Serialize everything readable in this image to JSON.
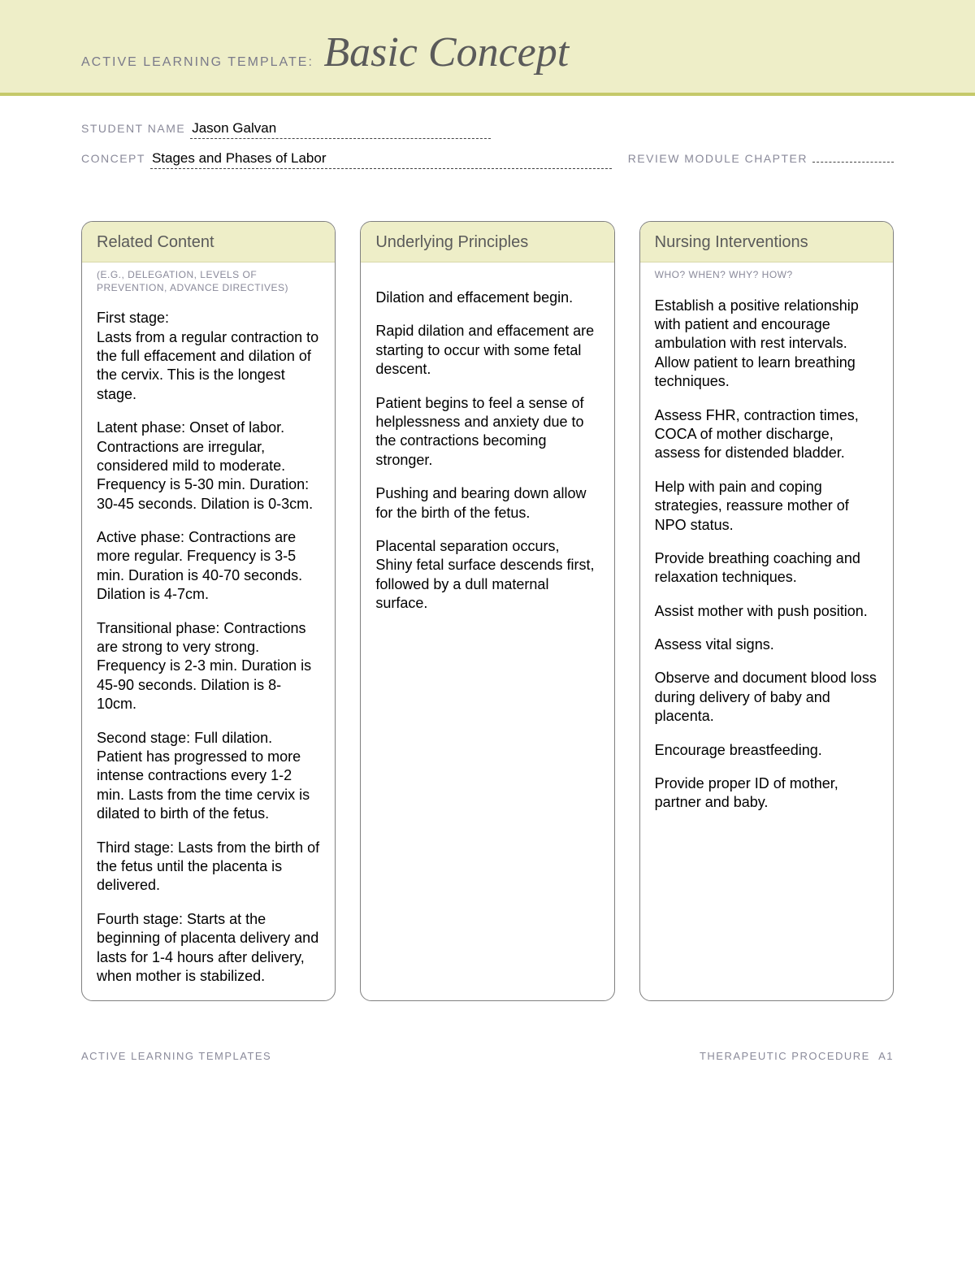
{
  "header": {
    "label": "ACTIVE LEARNING TEMPLATE:",
    "title": "Basic Concept"
  },
  "meta": {
    "student_name_label": "STUDENT NAME",
    "student_name_value": "Jason Galvan",
    "concept_label": "CONCEPT",
    "concept_value": "Stages and Phases of Labor",
    "review_label": "REVIEW MODULE CHAPTER",
    "review_value": ""
  },
  "columns": {
    "related": {
      "title": "Related Content",
      "subtitle": "(E.G., DELEGATION, LEVELS OF PREVENTION, ADVANCE DIRECTIVES)",
      "paragraphs": [
        "First stage:\nLasts from a regular contraction to the full effacement and dilation of the cervix. This is the longest stage.",
        "Latent phase: Onset of labor. Contractions are irregular, considered mild to moderate. Frequency is 5-30 min. Duration: 30-45 seconds. Dilation is 0-3cm.",
        "Active phase: Contractions are more regular. Frequency is 3-5 min. Duration is 40-70 seconds. Dilation is 4-7cm.",
        "Transitional phase: Contractions are strong to very strong. Frequency is 2-3 min. Duration is 45-90 seconds. Dilation is 8-10cm.",
        "Second stage: Full dilation. Patient has progressed to more intense contractions every 1-2 min. Lasts from the time cervix is dilated to birth of the fetus.",
        "Third stage: Lasts from the birth of the fetus until the placenta is delivered.",
        "Fourth stage: Starts at the beginning of placenta delivery and lasts for 1-4 hours after delivery, when mother is stabilized."
      ]
    },
    "principles": {
      "title": "Underlying Principles",
      "subtitle": "",
      "paragraphs": [
        "Dilation and effacement begin.",
        "Rapid dilation and effacement are starting to occur with some fetal descent.",
        "Patient begins to feel a sense of helplessness and anxiety due to the contractions becoming stronger.",
        "Pushing and bearing down allow for the birth of the fetus.",
        "Placental separation occurs, Shiny fetal surface descends first, followed by a dull maternal surface."
      ]
    },
    "interventions": {
      "title": "Nursing Interventions",
      "subtitle": "WHO? WHEN? WHY? HOW?",
      "paragraphs": [
        "Establish a positive relationship with patient and encourage ambulation with rest intervals. Allow patient to learn breathing techniques.",
        "Assess FHR, contraction times, COCA of mother discharge, assess for distended bladder.",
        "Help with pain and coping strategies, reassure mother of NPO status.",
        "Provide breathing coaching and relaxation techniques.",
        "Assist mother with push position.",
        "Assess vital signs.",
        "Observe and document blood loss during delivery of baby and placenta.",
        "Encourage breastfeeding.",
        "Provide proper ID of mother, partner and baby."
      ]
    }
  },
  "footer": {
    "left": "ACTIVE LEARNING TEMPLATES",
    "right": "THERAPEUTIC PROCEDURE",
    "page": "A1"
  }
}
